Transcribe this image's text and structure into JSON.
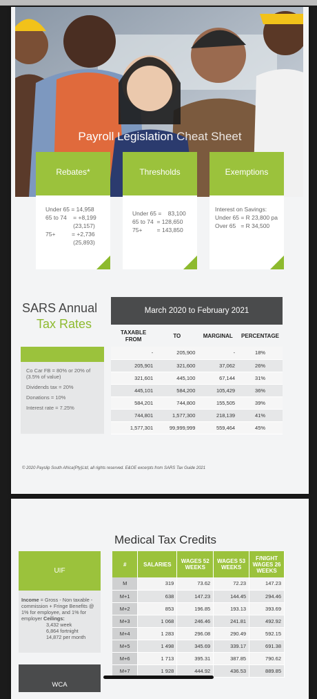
{
  "hero": {
    "title_main": "Payroll Legislation",
    "title_light": "Cheat Sheet"
  },
  "cards": [
    {
      "title": "Rebates*",
      "lines": [
        "Under 65 = 14,958",
        "65 to 74    = +8,199",
        "                 (23,157)",
        "75+          = +2,736",
        "                 (25,893)"
      ]
    },
    {
      "title": "Thresholds",
      "lines": [
        "Under 65 =    83,100",
        "65 to 74  = 128,650",
        "75+         = 143,850"
      ]
    },
    {
      "title": "Exemptions",
      "lines": [
        "Interest on Savings:",
        "Under 65 = R 23,800 pa",
        "Over 65   = R 34,500"
      ]
    }
  ],
  "tax_rates": {
    "heading_1": "SARS Annual",
    "heading_2": "Tax Rates",
    "period": "March 2020 to February 2021",
    "columns": [
      "TAXABLE FROM",
      "TO",
      "MARGINAL",
      "PERCENTAGE"
    ],
    "rows": [
      [
        "-",
        "205,900",
        "-",
        "18%"
      ],
      [
        "205,901",
        "321,600",
        "37,062",
        "26%"
      ],
      [
        "321,601",
        "445,100",
        "67,144",
        "31%"
      ],
      [
        "445,101",
        "584,200",
        "105,429",
        "36%"
      ],
      [
        "584,201",
        "744,800",
        "155,505",
        "39%"
      ],
      [
        "744,801",
        "1,577,300",
        "218,139",
        "41%"
      ],
      [
        "1,577,301",
        "99,999,999",
        "559,464",
        "45%"
      ]
    ],
    "notes": [
      "Co Car FB = 80% or 20% of (3.5% of value)",
      "Dividends tax = 20%",
      "Donations = 10%",
      "Interest rate = 7.25%"
    ]
  },
  "footer": "© 2020 Payslip South Africa(Pty)Ltd, all rights reserved. E&OE excerpts from SARS Tax Guide 2021",
  "medical": {
    "title": "Medical Tax Credits",
    "columns": [
      "#",
      "SALARIES",
      "WAGES 52 WEEKS",
      "WAGES 53 WEEKS",
      "F/NIGHT WAGES 26 WEEKS"
    ],
    "rows": [
      [
        "M",
        "319",
        "73.62",
        "72.23",
        "147.23"
      ],
      [
        "M+1",
        "638",
        "147.23",
        "144.45",
        "294.46"
      ],
      [
        "M+2",
        "853",
        "196.85",
        "193.13",
        "393.69"
      ],
      [
        "M+3",
        "1 068",
        "246.46",
        "241.81",
        "492.92"
      ],
      [
        "M+4",
        "1 283",
        "296.08",
        "290.49",
        "592.15"
      ],
      [
        "M+5",
        "1 498",
        "345.69",
        "339.17",
        "691.38"
      ],
      [
        "M+6",
        "1 713",
        "395.31",
        "387.85",
        "790.62"
      ],
      [
        "M+7",
        "1 928",
        "444.92",
        "436.53",
        "889.85"
      ]
    ]
  },
  "uif": {
    "title": "UIF",
    "income_label": "Income",
    "income_text": "= Gross - Non taxable - commission + Fringe Benefits @ 1% for employee, and 1% for employer",
    "ceilings_label": "Ceilings:",
    "ceilings": [
      "3,432 week",
      "6,864 fortnight",
      "14,872 per month"
    ]
  },
  "wca": {
    "title": "WCA"
  }
}
